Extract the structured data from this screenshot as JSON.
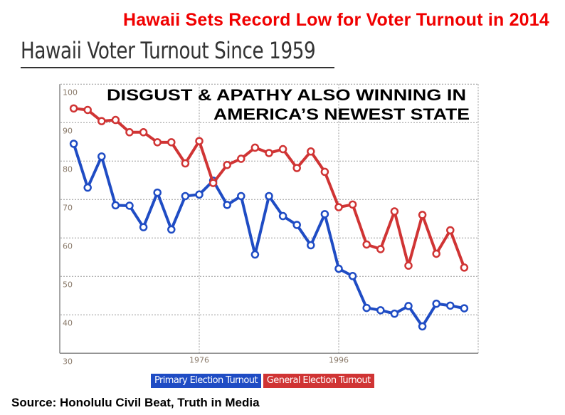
{
  "headline": "Hawaii Sets Record Low for Voter Turnout in 2014",
  "subtitle": "Hawaii Voter Turnout Since 1959",
  "source": "Source: Honolulu Civil Beat, Truth in Media",
  "chart_data": {
    "type": "line",
    "title": "Hawaii Voter Turnout Since 1959",
    "annotation": [
      "DISGUST & APATHY ALSO WINNING IN",
      "AMERICA’S NEWEST STATE"
    ],
    "xlabel": "",
    "ylabel": "",
    "ylim": [
      30,
      100
    ],
    "yticks": [
      100,
      90,
      80,
      70,
      60,
      50,
      40,
      30
    ],
    "xticks": [
      1976,
      1996
    ],
    "xlim": [
      1956,
      2016
    ],
    "grid": true,
    "legend_position": "bottom",
    "x": [
      1958,
      1960,
      1962,
      1964,
      1966,
      1968,
      1970,
      1972,
      1974,
      1976,
      1978,
      1980,
      1982,
      1984,
      1986,
      1988,
      1990,
      1992,
      1994,
      1996,
      1998,
      2000,
      2002,
      2004,
      2006,
      2008,
      2010,
      2012,
      2014
    ],
    "series": [
      {
        "name": "Primary Election Turnout",
        "color": "#1f4cc4",
        "values": [
          84.5,
          73.1,
          81.2,
          68.5,
          68.4,
          62.8,
          71.8,
          62.2,
          70.9,
          71.3,
          74.9,
          68.6,
          70.9,
          55.7,
          70.9,
          65.7,
          63.4,
          58.1,
          66.2,
          52.0,
          50.1,
          41.8,
          41.2,
          40.3,
          42.3,
          37.0,
          42.9,
          42.4,
          41.7
        ]
      },
      {
        "name": "General Election Turnout",
        "color": "#d03434",
        "values": [
          93.7,
          93.3,
          90.4,
          90.7,
          87.5,
          87.5,
          84.9,
          84.9,
          79.4,
          85.2,
          74.3,
          79.0,
          80.6,
          83.5,
          82.1,
          83.1,
          78.2,
          82.5,
          77.2,
          68.0,
          68.7,
          58.3,
          57.1,
          66.9,
          52.8,
          66.0,
          55.9,
          62.0,
          52.3
        ]
      }
    ]
  }
}
